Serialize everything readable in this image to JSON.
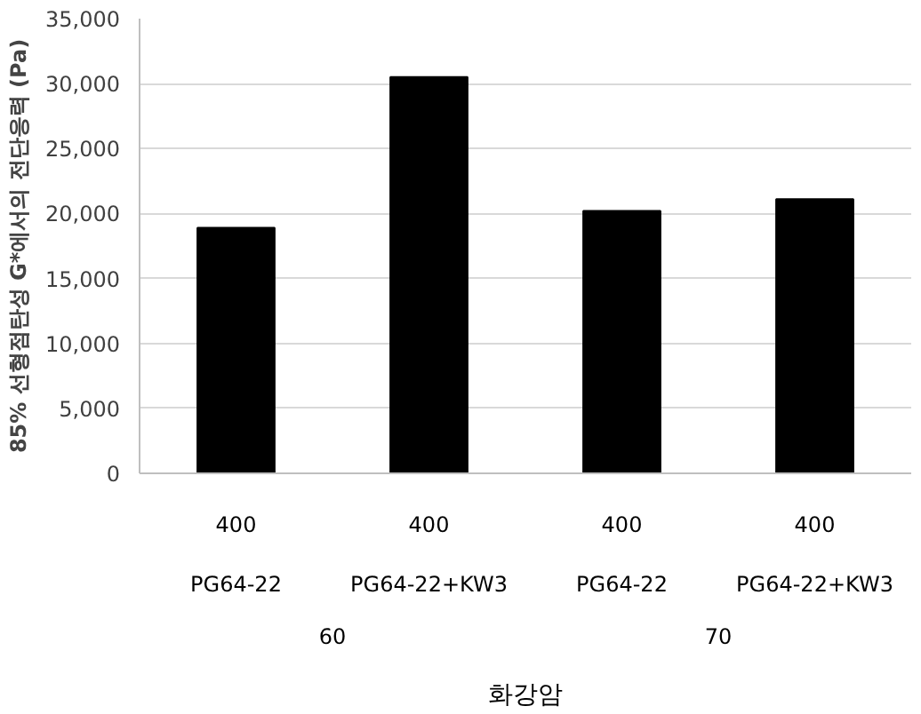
{
  "chart_data": {
    "type": "bar",
    "ylabel": "85% 선형점탄성 G*에서의 전단응력 (Pa)",
    "categories": [
      "400\nPG64-22",
      "400\nPG64-22+KW3",
      "400\nPG64-22",
      "400\nPG64-22+KW3"
    ],
    "values": [
      18900,
      30500,
      20200,
      21100
    ],
    "color": "#000000",
    "ylim": [
      0,
      35000
    ],
    "yticks": [
      0,
      {
        "value": 5000,
        "label": "5,000"
      },
      {
        "value": 10000,
        "label": "10,000"
      },
      {
        "value": 15000,
        "label": "15,000"
      },
      {
        "value": 20000,
        "label": "20,000"
      },
      {
        "value": 25000,
        "label": "25,000"
      },
      {
        "value": 30000,
        "label": "30,000"
      },
      {
        "value": 35000,
        "label": "35,000"
      }
    ],
    "grid": "y",
    "annotations": [
      "60",
      "70",
      "화강암"
    ]
  }
}
